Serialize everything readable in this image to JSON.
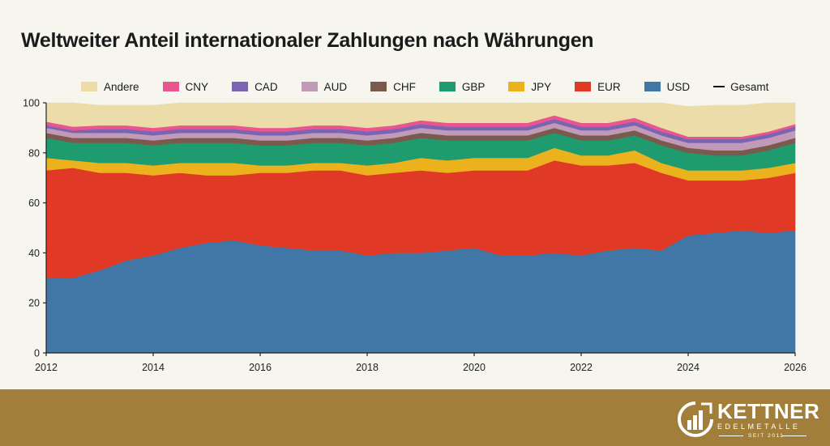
{
  "colors": {
    "Andere": "#ebdcaa",
    "CNY": "#e8558f",
    "CAD": "#7a65b2",
    "AUD": "#c19ab8",
    "CHF": "#7a5a4c",
    "GBP": "#1e9b6f",
    "JPY": "#ebb21d",
    "EUR": "#e03a26",
    "USD": "#4177a6",
    "background": "#f6f5ee",
    "footer": "#a17f3a"
  },
  "footer": {
    "brand_name": "KETTNER",
    "brand_sub": "EDELMETALLE",
    "brand_since": "SEIT 2011"
  },
  "chart_data": {
    "type": "area",
    "stacked": true,
    "title": "Weltweiter Anteil internationaler Zahlungen nach Währungen",
    "xlabel": "",
    "ylabel": "",
    "xlim": [
      2012,
      2026
    ],
    "ylim": [
      0,
      100
    ],
    "x_ticks": [
      "2012",
      "2014",
      "2016",
      "2018",
      "2020",
      "2022",
      "2024",
      "2026"
    ],
    "y_ticks": [
      "0",
      "20",
      "40",
      "60",
      "80",
      "100"
    ],
    "legend": [
      "Andere",
      "CNY",
      "CAD",
      "AUD",
      "CHF",
      "GBP",
      "JPY",
      "EUR",
      "USD",
      "Gesamt"
    ],
    "x": [
      2012,
      2012.5,
      2013,
      2013.5,
      2014,
      2014.5,
      2015,
      2015.5,
      2016,
      2016.5,
      2017,
      2017.5,
      2018,
      2018.5,
      2019,
      2019.5,
      2020,
      2020.5,
      2021,
      2021.5,
      2022,
      2022.5,
      2023,
      2023.5,
      2024,
      2024.5,
      2025,
      2025.5,
      2026
    ],
    "series": [
      {
        "name": "USD",
        "values": [
          30,
          30,
          33,
          37,
          39,
          42,
          44,
          45,
          43,
          42,
          41,
          41,
          39,
          40,
          40,
          41,
          42,
          39,
          39,
          40,
          39,
          41,
          42,
          41,
          47,
          48,
          49,
          48,
          49
        ]
      },
      {
        "name": "EUR",
        "values": [
          43,
          44,
          39,
          35,
          32,
          30,
          27,
          26,
          29,
          30,
          32,
          32,
          32,
          32,
          33,
          31,
          31,
          34,
          34,
          37,
          36,
          34,
          34,
          31,
          22,
          21,
          20,
          22,
          23
        ]
      },
      {
        "name": "JPY",
        "values": [
          5,
          3,
          4,
          4,
          4,
          4,
          5,
          5,
          3,
          3,
          3,
          3,
          4,
          4,
          5,
          5,
          5,
          5,
          5,
          5,
          4,
          4,
          5,
          4,
          4,
          4,
          4,
          4,
          4
        ]
      },
      {
        "name": "GBP",
        "values": [
          8,
          7,
          8,
          8,
          8,
          8,
          8,
          8,
          8,
          8,
          8,
          8,
          8,
          8,
          8,
          8,
          7,
          7,
          7,
          6,
          6,
          6,
          6,
          7,
          7,
          6,
          6,
          7,
          8
        ]
      },
      {
        "name": "CHF",
        "values": [
          2,
          2,
          2,
          2,
          2,
          2,
          2,
          2,
          2,
          2,
          2,
          2,
          2,
          2,
          2,
          2,
          2,
          2,
          2,
          2,
          2,
          2,
          2,
          2,
          2,
          2,
          2,
          2,
          2
        ]
      },
      {
        "name": "AUD",
        "values": [
          2,
          2,
          2,
          2,
          2,
          2,
          2,
          2,
          2,
          2,
          2,
          2,
          2,
          2,
          2,
          2,
          2,
          2,
          2,
          2,
          2,
          2,
          2,
          2,
          2,
          3,
          3,
          3,
          3
        ]
      },
      {
        "name": "CAD",
        "values": [
          1,
          1,
          1.5,
          1.5,
          1.5,
          1.5,
          1.5,
          1.5,
          1.5,
          1.5,
          1.5,
          1.5,
          1.5,
          1.5,
          1.5,
          1.5,
          1.5,
          1.5,
          1.5,
          1.5,
          1.5,
          1.5,
          1.5,
          1.5,
          1.5,
          1.5,
          1.5,
          1.5,
          1.5
        ]
      },
      {
        "name": "CNY",
        "values": [
          1.5,
          1.5,
          1.5,
          1.5,
          1.5,
          1.5,
          1.5,
          1.5,
          1.5,
          1.5,
          1.5,
          1.5,
          1.5,
          1.5,
          1.5,
          1.5,
          1.5,
          1.5,
          1.5,
          1.5,
          1.5,
          1.5,
          1.5,
          1.5,
          1,
          1,
          1,
          1,
          1
        ]
      },
      {
        "name": "Andere",
        "values": [
          7.5,
          9.5,
          8,
          8,
          9,
          9,
          9,
          9,
          10,
          10,
          9,
          9,
          10,
          9,
          7,
          8,
          8,
          8,
          8,
          5,
          8,
          8,
          6,
          10,
          12,
          12.5,
          12.5,
          11.5,
          8.5
        ]
      }
    ]
  }
}
